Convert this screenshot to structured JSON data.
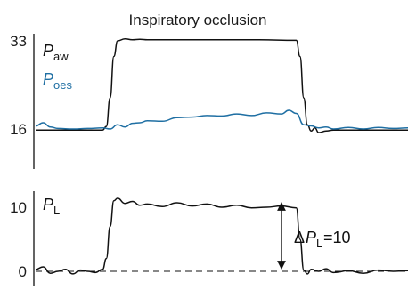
{
  "chart_data": [
    {
      "type": "line",
      "title": "Inspiratory occlusion",
      "yticks": [
        16,
        33
      ],
      "ylim": [
        10,
        36
      ],
      "x_range": [
        0,
        100
      ],
      "series": [
        {
          "name": "P_aw",
          "label_main": "P",
          "label_sub": "aw",
          "color": "#111111",
          "x": [
            0,
            10,
            18,
            19,
            20,
            21,
            22,
            24,
            26,
            28,
            30,
            40,
            50,
            60,
            70,
            71,
            72,
            73,
            74,
            75,
            76,
            78,
            80,
            85,
            90,
            95,
            100
          ],
          "y": [
            15.8,
            15.8,
            15.8,
            16.5,
            22,
            30,
            33,
            33.4,
            33.2,
            33.3,
            33.2,
            33.2,
            33.2,
            33.2,
            33.1,
            30,
            22,
            16.8,
            15.6,
            16.2,
            15.3,
            15.6,
            15.8,
            15.8,
            15.8,
            15.8,
            15.8
          ]
        },
        {
          "name": "P_oes",
          "label_main": "P",
          "label_sub": "oes",
          "color": "#1f6fa3",
          "x": [
            0,
            2,
            4,
            6,
            10,
            14,
            18,
            20,
            22,
            24,
            26,
            28,
            30,
            34,
            38,
            42,
            46,
            50,
            54,
            58,
            62,
            66,
            68,
            70,
            72,
            74,
            76,
            78,
            80,
            84,
            88,
            92,
            96,
            100
          ],
          "y": [
            16.6,
            17.2,
            16.4,
            16.1,
            16.0,
            16.1,
            16.2,
            16.0,
            16.8,
            16.4,
            17.1,
            17.2,
            17.6,
            17.5,
            18.2,
            18.3,
            18.6,
            18.5,
            18.9,
            18.6,
            19.1,
            18.9,
            19.6,
            19.0,
            16.8,
            16.6,
            16.2,
            16.4,
            16.0,
            16.3,
            16.0,
            16.3,
            16.1,
            16.2
          ]
        }
      ]
    },
    {
      "type": "line",
      "yticks": [
        0,
        10
      ],
      "ylim": [
        -2,
        13
      ],
      "x_range": [
        0,
        100
      ],
      "series": [
        {
          "name": "P_L",
          "label_main": "P",
          "label_sub": "L",
          "color": "#111111",
          "x": [
            0,
            2,
            4,
            6,
            8,
            10,
            12,
            14,
            16,
            18,
            19,
            20,
            21,
            22,
            24,
            26,
            28,
            30,
            34,
            38,
            42,
            46,
            50,
            54,
            58,
            62,
            66,
            70,
            71,
            72,
            73,
            74,
            76,
            78,
            80,
            84,
            88,
            92,
            96,
            100
          ],
          "y": [
            0.3,
            0.7,
            -0.3,
            0.0,
            0.3,
            -0.4,
            0.2,
            0.0,
            -0.2,
            0.3,
            2,
            7,
            11,
            11.4,
            10.6,
            10.9,
            10.3,
            10.5,
            10.1,
            10.7,
            10.2,
            10.5,
            10.0,
            10.3,
            9.9,
            10.0,
            10.2,
            9.9,
            5,
            0.2,
            -0.4,
            0.3,
            0.0,
            0.4,
            -0.2,
            0.1,
            -0.3,
            0.2,
            0.0,
            0.1
          ]
        }
      ],
      "reference_line": {
        "y": 0,
        "style": "dashed"
      },
      "annotation": {
        "prefix": "Δ",
        "main": "P",
        "sub": "L",
        "suffix": "=10",
        "arrow_from": 0,
        "arrow_to": 10
      }
    }
  ]
}
